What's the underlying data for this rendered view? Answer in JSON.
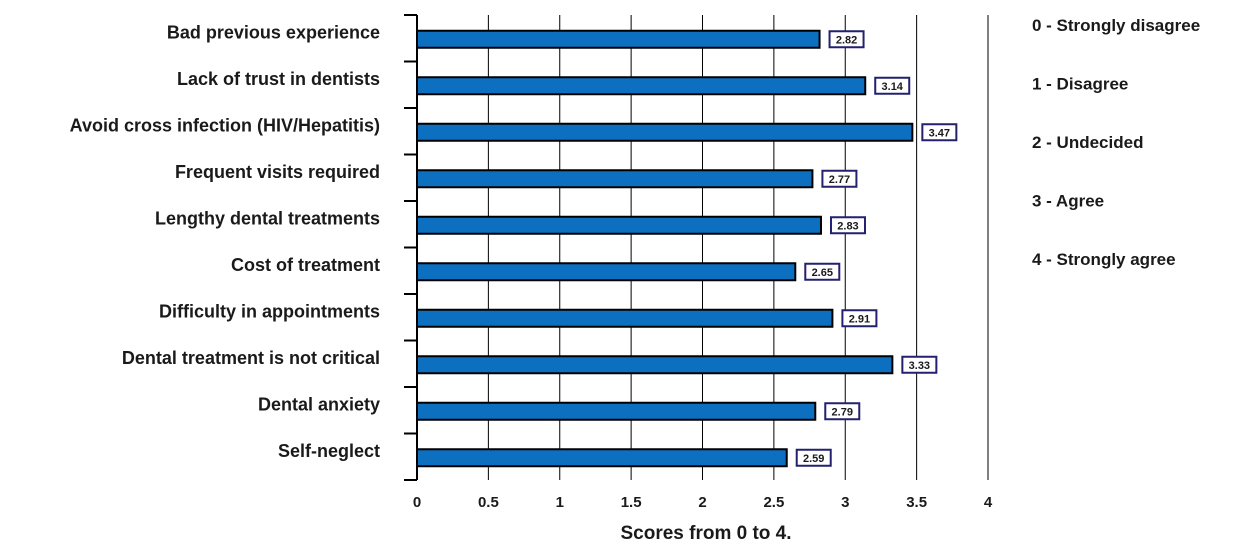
{
  "chart_data": {
    "type": "bar",
    "orientation": "horizontal",
    "categories": [
      "Bad previous experience",
      "Lack of trust in dentists",
      "Avoid cross infection (HIV/Hepatitis)",
      "Frequent visits required",
      "Lengthy dental treatments",
      "Cost of treatment",
      "Difficulty in appointments",
      "Dental treatment is not critical",
      "Dental anxiety",
      "Self-neglect"
    ],
    "values": [
      2.82,
      3.14,
      3.47,
      2.77,
      2.83,
      2.65,
      2.91,
      3.33,
      2.79,
      2.59
    ],
    "data_labels": [
      "2.82",
      "3.14",
      "3.47",
      "2.77",
      "2.83",
      "2.65",
      "2.91",
      "3.33",
      "2.79",
      "2.59"
    ],
    "xlabel": "Scores from 0 to 4.",
    "ylabel": "",
    "xlim": [
      0,
      4
    ],
    "xticks": [
      "0",
      "0.5",
      "1",
      "1.5",
      "2",
      "2.5",
      "3",
      "3.5",
      "4"
    ],
    "grid": "vertical",
    "legend_placement": "right",
    "scale_legend": [
      "0 - Strongly disagree",
      "1 - Disagree",
      "2 - Undecided",
      "3 - Agree",
      "4 - Strongly agree"
    ],
    "colors": {
      "bar": "#0d6fc0",
      "bar_outline": "#000000",
      "label_border": "#23216e",
      "grid": "#000000"
    }
  }
}
